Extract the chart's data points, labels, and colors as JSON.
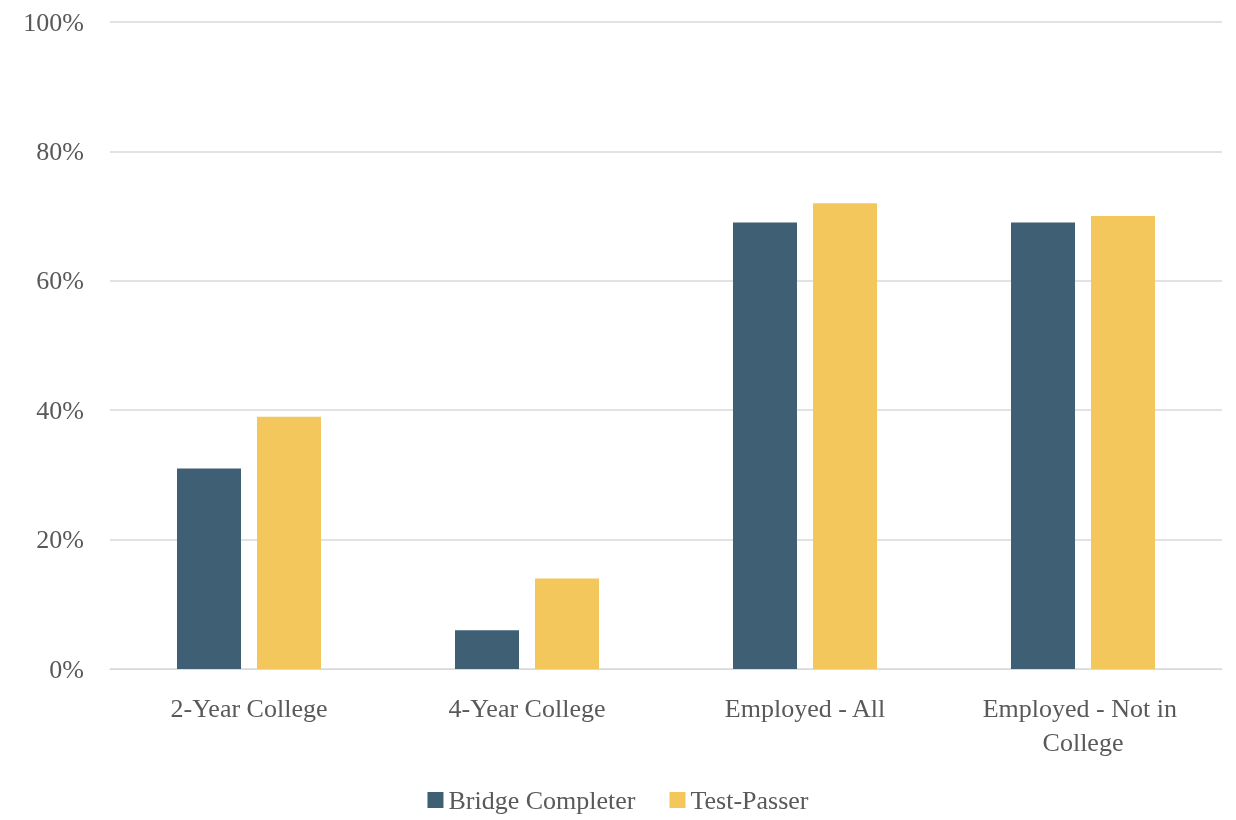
{
  "chart_data": {
    "type": "bar",
    "categories": [
      "2-Year College",
      "4-Year College",
      "Employed - All",
      "Employed - Not in College"
    ],
    "series": [
      {
        "name": "Bridge Completer",
        "color": "#3f5f75",
        "values": [
          31,
          6,
          69,
          69
        ]
      },
      {
        "name": "Test-Passer",
        "color": "#f4c75c",
        "values": [
          39,
          14,
          72,
          70
        ]
      }
    ],
    "ylim": [
      0,
      100
    ],
    "yticks": [
      {
        "value": 0,
        "label": "0%"
      },
      {
        "value": 20,
        "label": "20%"
      },
      {
        "value": 40,
        "label": "40%"
      },
      {
        "value": 60,
        "label": "60%"
      },
      {
        "value": 80,
        "label": "80%"
      },
      {
        "value": 100,
        "label": "100%"
      }
    ],
    "grid": "y",
    "legend": "bottom"
  }
}
